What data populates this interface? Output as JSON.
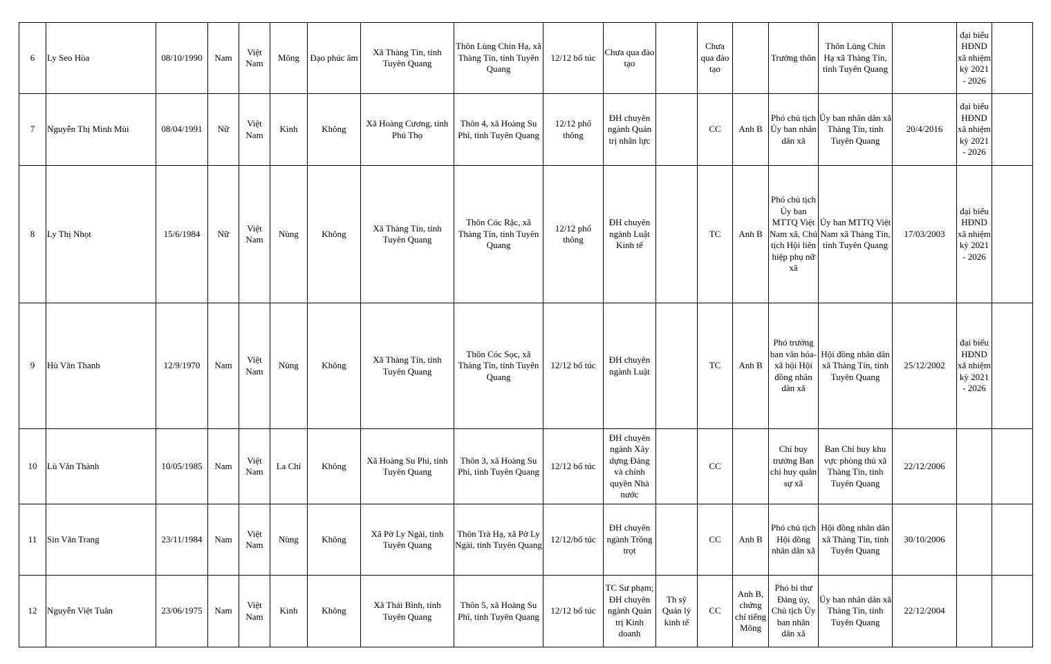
{
  "table": {
    "rows": [
      [
        "6",
        "Ly Seo Hòa",
        "08/10/1990",
        "Nam",
        "Việt Nam",
        "Mông",
        "Đạo phúc âm",
        "Xã Thàng Tín, tỉnh Tuyên Quang",
        "Thôn Lùng Chin Hạ, xã Thàng Tín, tỉnh Tuyên Quang",
        "12/12 bổ túc",
        "Chưa qua đào tạo",
        null,
        "Chưa qua đào tạo",
        null,
        "Trưởng thôn",
        "Thôn Lùng Chin Hạ xã Thàng Tín, tỉnh Tuyên Quang",
        null,
        "đại biểu HĐND xã nhiệm kỳ 2021 - 2026",
        null
      ],
      [
        "7",
        "Nguyễn Thị Minh Mùi",
        "08/04/1991",
        "Nữ",
        "Việt Nam",
        "Kinh",
        "Không",
        "Xã Hoàng Cương, tỉnh Phú Thọ",
        "Thôn 4, xã Hoàng Su Phì, tỉnh Tuyên Quang",
        "12/12 phổ thông",
        "ĐH chuyên ngành Quản trị nhân lực",
        null,
        "CC",
        "Anh B",
        "Phó chủ tịch Ủy ban nhân dân xã",
        "Ủy ban nhân dân xã Thàng Tín, tỉnh Tuyên Quang",
        "20/4/2016",
        "đại biểu HĐND xã nhiệm kỳ 2021 - 2026",
        null
      ],
      [
        "8",
        "Ly Thị Nhọt",
        "15/6/1984",
        "Nữ",
        "Việt Nam",
        "Nùng",
        "Không",
        "Xã Thàng Tín, tỉnh Tuyên Quang",
        "Thôn Cóc Rặc, xã Thàng Tín, tỉnh Tuyên Quang",
        "12/12 phổ thông",
        "ĐH chuyên ngành Luật Kinh tế",
        null,
        "TC",
        "Anh B",
        "Phó chủ tịch Ủy ban MTTQ Việt Nam xã, Chủ tịch Hội liên hiệp phụ nữ xã",
        "Ủy ban MTTQ Việt Nam xã Thàng Tín, tỉnh Tuyên Quang",
        "17/03/2003",
        "đại biểu HĐND xã nhiệm kỳ 2021 - 2026",
        null
      ],
      [
        "9",
        "Hù Văn Thanh",
        "12/9/1970",
        "Nam",
        "Việt Nam",
        "Nùng",
        "Không",
        "Xã Thàng Tín, tỉnh Tuyên Quang",
        "Thôn Cóc Sọc, xã Thàng Tín, tỉnh Tuyên Quang",
        "12/12 bổ túc",
        "ĐH chuyên ngành Luật",
        null,
        "TC",
        "Anh B",
        "Phó trưởng ban văn hóa-xã hội Hội đồng nhân dân xã",
        "Hội đồng nhân dân xã Thàng Tín, tỉnh Tuyên Quang",
        "25/12/2002",
        "đại biểu HĐND xã nhiệm kỳ 2021 - 2026",
        null
      ],
      [
        "10",
        "Lù Văn Thành",
        "10/05/1985",
        "Nam",
        "Việt Nam",
        "La Chí",
        "Không",
        "Xã Hoàng Su Phì, tỉnh Tuyên Quang",
        "Thôn 3, xã Hoàng Su Phì, tỉnh Tuyên Quang",
        "12/12 bổ túc",
        "ĐH chuyên ngành Xây dựng Đảng và chính quyền Nhà nước",
        null,
        "CC",
        null,
        "Chỉ huy trưởng Ban chỉ huy quân sự xã",
        "Ban Chỉ huy khu vực phòng thủ xã Thàng Tín, tỉnh Tuyên Quang",
        "22/12/2006",
        null,
        null
      ],
      [
        "11",
        "Sin Văn Trang",
        "23/11/1984",
        "Nam",
        "Việt Nam",
        "Nùng",
        "Không",
        "Xã Pờ Ly Ngài, tỉnh Tuyên Quang",
        "Thôn Trà Hạ, xã Pờ Ly Ngài, tỉnh Tuyên Quang",
        "12/12/bổ túc",
        "ĐH chuyên ngành Trồng trọt",
        null,
        "CC",
        "Anh B",
        "Phó chủ tịch Hội đồng nhân dân xã",
        "Hội đồng nhân dân xã Thàng Tín, tỉnh Tuyên Quang",
        "30/10/2006",
        null,
        null
      ],
      [
        "12",
        "Nguyễn Việt Tuân",
        "23/06/1975",
        "Nam",
        "Việt Nam",
        "Kinh",
        "Không",
        "Xã Thái Bình, tỉnh Tuyên Quang",
        "Thôn 5, xã Hoàng Su Phì, tỉnh Tuyên Quang",
        "12/12 bổ túc",
        "TC Sư phạm; ĐH chuyên ngành Quản trị Kinh doanh",
        "Th sỹ Quản lý kinh tế",
        "CC",
        "Anh B, chứng chỉ tiếng Mông",
        "Phó bí thư Đảng ủy, Chủ tịch Ủy ban nhân dân xã",
        "Ủy ban nhân dân xã Thàng Tín, tỉnh Tuyên Quang",
        "22/12/2004",
        null,
        null
      ]
    ]
  }
}
